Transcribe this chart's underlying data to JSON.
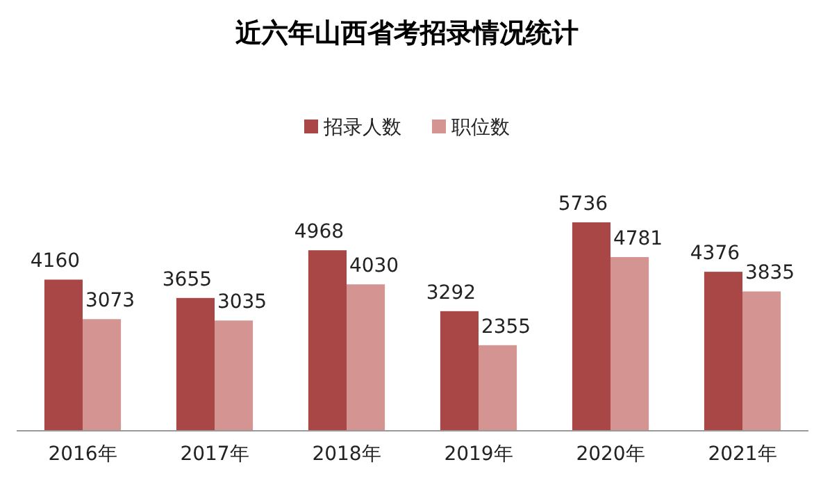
{
  "chart_data": {
    "type": "bar",
    "title": "近六年山西省考招录情况统计",
    "categories": [
      "2016年",
      "2017年",
      "2018年",
      "2019年",
      "2020年",
      "2021年"
    ],
    "series": [
      {
        "name": "招录人数",
        "color": "#a84745",
        "values": [
          4160,
          3655,
          4968,
          3292,
          5736,
          4376
        ]
      },
      {
        "name": "职位数",
        "color": "#d49592",
        "values": [
          3073,
          3035,
          4030,
          2355,
          4781,
          3835
        ]
      }
    ],
    "data_labels": true,
    "legend": "top"
  }
}
